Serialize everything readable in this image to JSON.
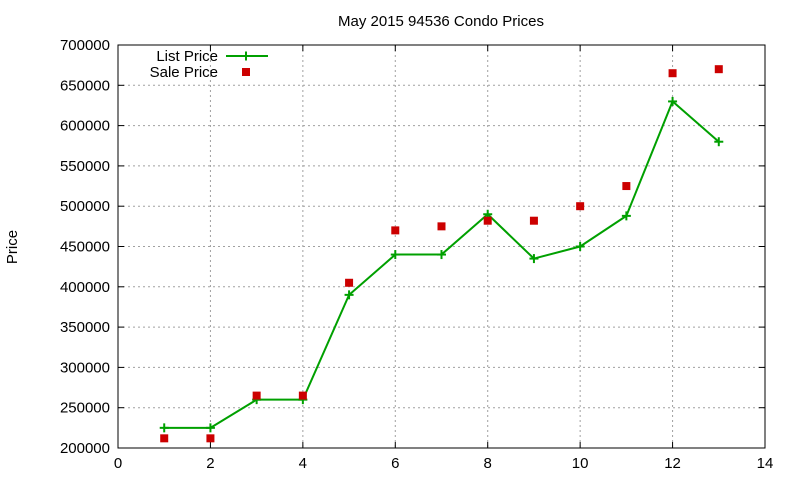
{
  "chart_data": {
    "type": "line",
    "title": "May 2015 94536 Condo Prices",
    "xlabel": "",
    "ylabel": "Price",
    "xlim": [
      0,
      14
    ],
    "ylim": [
      200000,
      700000
    ],
    "x_ticks": [
      "0",
      "2",
      "4",
      "6",
      "8",
      "10",
      "12",
      "14"
    ],
    "y_ticks": [
      "200000",
      "250000",
      "300000",
      "350000",
      "400000",
      "450000",
      "500000",
      "550000",
      "600000",
      "650000",
      "700000"
    ],
    "grid": true,
    "legend_position": "top-left",
    "series": [
      {
        "name": "List Price",
        "style": "linespoints",
        "marker": "plus",
        "color": "#00a000",
        "x": [
          1,
          2,
          3,
          4,
          5,
          6,
          7,
          8,
          9,
          10,
          11,
          12,
          13
        ],
        "values": [
          225000,
          225000,
          260000,
          260000,
          390000,
          440000,
          440000,
          490000,
          435000,
          450000,
          488000,
          630000,
          580000
        ]
      },
      {
        "name": "Sale Price",
        "style": "points",
        "marker": "square",
        "color": "#cc0000",
        "x": [
          1,
          2,
          3,
          4,
          5,
          6,
          7,
          8,
          9,
          10,
          11,
          12,
          13
        ],
        "values": [
          212000,
          212000,
          265000,
          265000,
          405000,
          470000,
          475000,
          482000,
          482000,
          500000,
          525000,
          665000,
          670000
        ]
      }
    ]
  }
}
